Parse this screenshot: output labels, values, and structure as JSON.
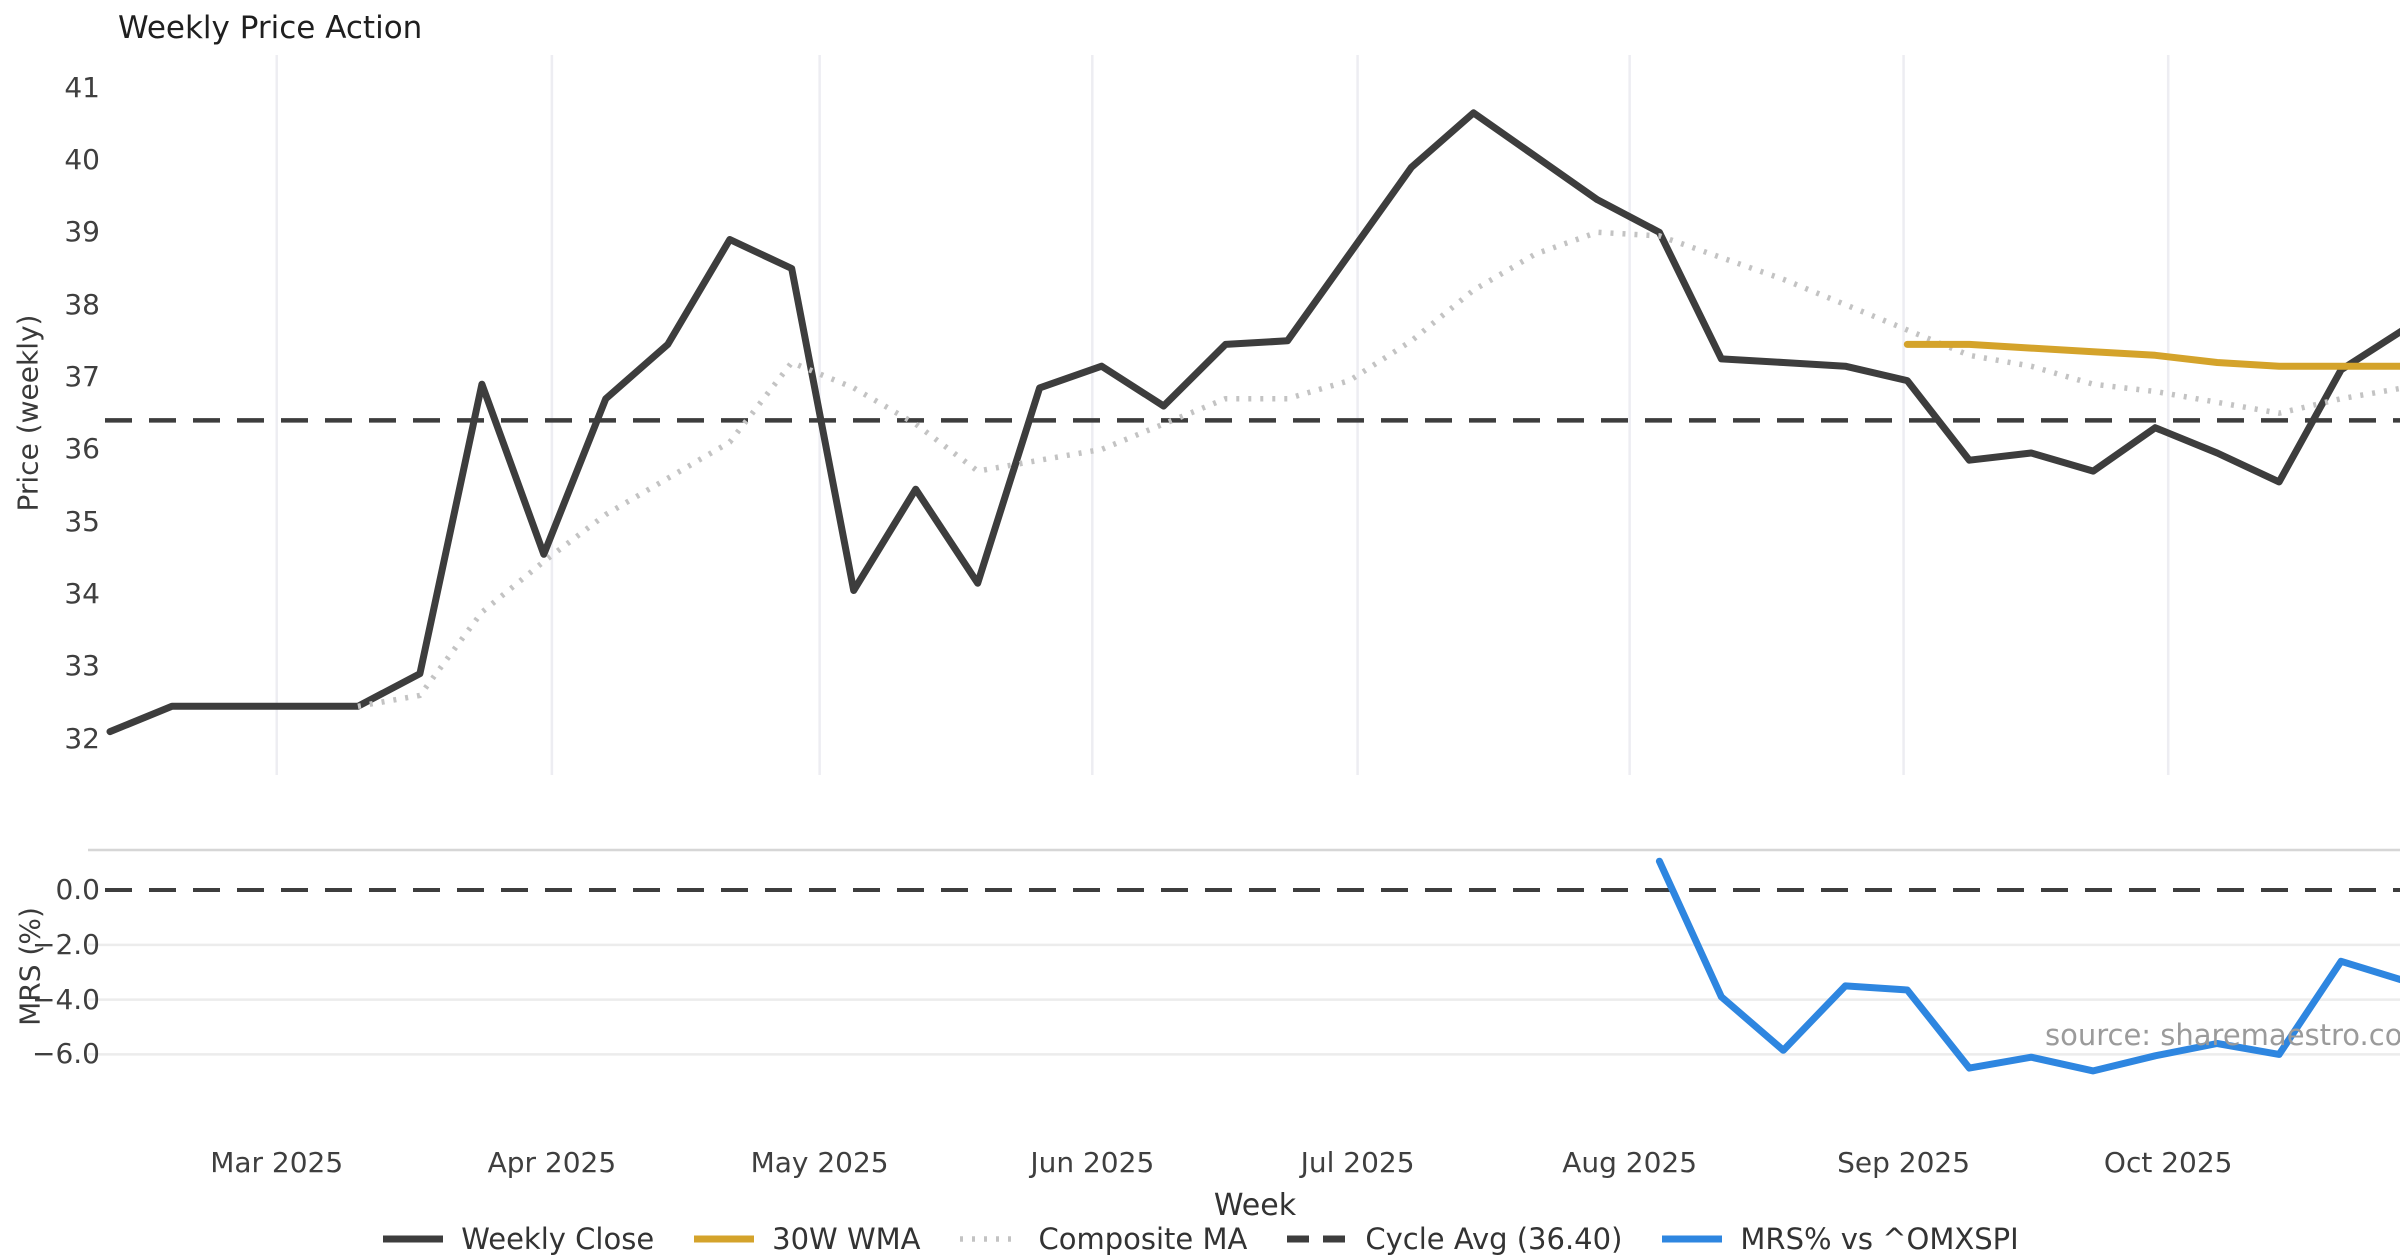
{
  "title": "Weekly Price Action",
  "xlabel": "Week",
  "watermark": "source: sharemaestro.com",
  "chart_data": {
    "type": "line",
    "title": "Weekly Price Action",
    "xlabel": "Week",
    "x_unit": "week-index (weekly points, Feb 2025 → late Oct 2025)",
    "xlim": [
      0,
      36.95
    ],
    "x_ticks": [
      {
        "label": "Mar 2025",
        "pos": 2.69
      },
      {
        "label": "Apr 2025",
        "pos": 7.13
      },
      {
        "label": "May 2025",
        "pos": 11.45
      },
      {
        "label": "Jun 2025",
        "pos": 15.85
      },
      {
        "label": "Jul 2025",
        "pos": 20.13
      },
      {
        "label": "Aug 2025",
        "pos": 24.52
      },
      {
        "label": "Sep 2025",
        "pos": 28.94
      },
      {
        "label": "Oct 2025",
        "pos": 33.21
      }
    ],
    "grid": {
      "top_panel": "vertical month gridlines",
      "bottom_panel": "horizontal gridlines",
      "gridline_color": "#ededf2",
      "hgrid_color": "#ececec",
      "panel_divider_color": "#d6d6d6"
    },
    "legend_position": "bottom center, horizontal, no frame",
    "panels": [
      {
        "id": "price",
        "ylabel": "Price (weekly)",
        "ylim": [
          31.5,
          41.45
        ],
        "y_ticks": [
          {
            "v": 32,
            "label": "32"
          },
          {
            "v": 33,
            "label": "33"
          },
          {
            "v": 34,
            "label": "34"
          },
          {
            "v": 35,
            "label": "35"
          },
          {
            "v": 36,
            "label": "36"
          },
          {
            "v": 37,
            "label": "37"
          },
          {
            "v": 38,
            "label": "38"
          },
          {
            "v": 39,
            "label": "39"
          },
          {
            "v": 40,
            "label": "40"
          },
          {
            "v": 41,
            "label": "41"
          }
        ],
        "const_lines": [
          {
            "id": "cycle-avg",
            "name": "Cycle Avg (36.40)",
            "value": 36.4,
            "style": "dashed",
            "color": "#3d3d3d",
            "width": 4.5
          }
        ],
        "series": [
          {
            "id": "weekly-close",
            "name": "Weekly Close",
            "color": "#3d3d3d",
            "style": "solid",
            "width": 7,
            "start": 0,
            "values": [
              32.1,
              32.45,
              32.45,
              32.45,
              32.45,
              32.9,
              36.9,
              34.55,
              36.7,
              37.45,
              38.9,
              38.5,
              34.05,
              35.45,
              34.15,
              36.85,
              37.15,
              36.6,
              37.45,
              37.5,
              38.7,
              39.9,
              40.65,
              40.05,
              39.45,
              39.0,
              37.25,
              37.2,
              37.15,
              36.95,
              35.85,
              35.95,
              35.7,
              36.3,
              35.95,
              35.55,
              37.1,
              37.65
            ]
          },
          {
            "id": "composite-ma",
            "name": "Composite MA",
            "color": "#c3c3c3",
            "style": "dotted",
            "width": 5.5,
            "start": 4,
            "values": [
              32.45,
              32.6,
              33.75,
              34.45,
              35.1,
              35.6,
              36.1,
              37.2,
              36.85,
              36.35,
              35.7,
              35.85,
              36.0,
              36.35,
              36.7,
              36.7,
              36.95,
              37.5,
              38.2,
              38.7,
              39.0,
              38.95,
              38.65,
              38.35,
              38.0,
              37.65,
              37.3,
              37.15,
              36.9,
              36.8,
              36.65,
              36.5,
              36.7,
              36.85
            ]
          },
          {
            "id": "wma-30w",
            "name": "30W WMA",
            "color": "#d4a32b",
            "style": "solid",
            "width": 7,
            "start": 29,
            "values": [
              37.45,
              37.45,
              37.4,
              37.35,
              37.3,
              37.2,
              37.15,
              37.15,
              37.15,
              37.15
            ]
          }
        ]
      },
      {
        "id": "mrs",
        "ylabel": "MRS (%)",
        "ylim": [
          -6.86,
          1.46
        ],
        "y_ticks": [
          {
            "v": 0,
            "label": "0.0"
          },
          {
            "v": -2,
            "label": "−2.0"
          },
          {
            "v": -4,
            "label": "−4.0"
          },
          {
            "v": -6,
            "label": "−6.0"
          }
        ],
        "const_lines": [
          {
            "id": "zero-line",
            "name": "0% reference",
            "value": 0,
            "style": "dashed",
            "color": "#3d3d3d",
            "width": 4
          }
        ],
        "series": [
          {
            "id": "mrs-line",
            "name": "MRS% vs ^OMXSPI",
            "color": "#2e86e0",
            "style": "solid",
            "width": 7,
            "start": 25,
            "values": [
              1.05,
              -3.9,
              -5.85,
              -3.5,
              -3.65,
              -6.5,
              -6.1,
              -6.6,
              -6.05,
              -5.6,
              -6.0,
              -2.6,
              -3.3
            ]
          }
        ]
      }
    ],
    "legend": [
      {
        "id": "weekly-close",
        "label": "Weekly Close",
        "color": "#3d3d3d",
        "style": "solid"
      },
      {
        "id": "wma-30w",
        "label": "30W WMA",
        "color": "#d4a32b",
        "style": "solid"
      },
      {
        "id": "composite-ma",
        "label": "Composite MA",
        "color": "#c3c3c3",
        "style": "dotted"
      },
      {
        "id": "cycle-avg",
        "label": "Cycle Avg (36.40)",
        "color": "#3d3d3d",
        "style": "dashed"
      },
      {
        "id": "mrs-line",
        "label": "MRS% vs ^OMXSPI",
        "color": "#2e86e0",
        "style": "solid"
      }
    ],
    "watermark": "source: sharemaestro.com"
  }
}
